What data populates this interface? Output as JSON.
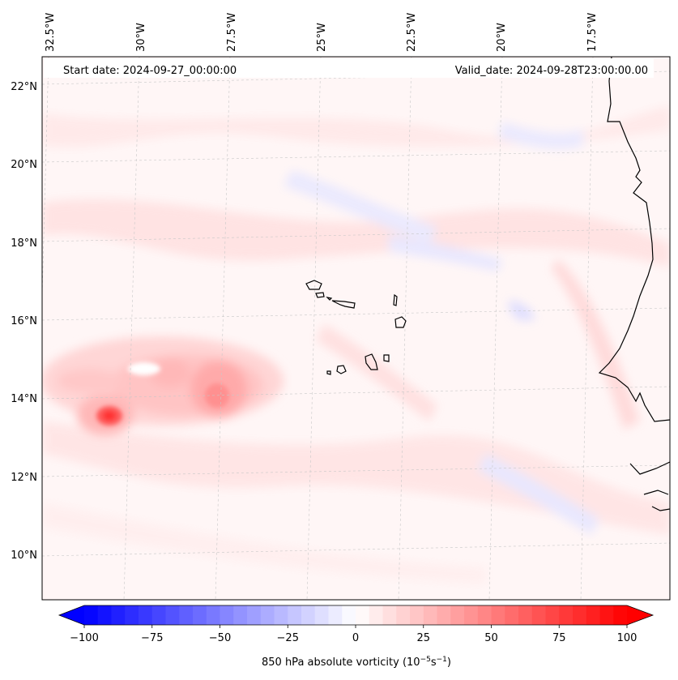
{
  "map": {
    "start_date": "Start date: 2024-09-27_00:00:00",
    "valid_date": "Valid_date: 2024-09-28T23:00:00.00",
    "lon_labels": [
      "32.5°W",
      "30°W",
      "27.5°W",
      "25°W",
      "22.5°W",
      "20°W",
      "17.5°W"
    ],
    "lat_labels": [
      "22°N",
      "20°N",
      "18°N",
      "16°N",
      "14°N",
      "12°N",
      "10°N"
    ]
  },
  "colorbar": {
    "label": "850 hPa absolute vorticity (10",
    "label_exp1": "−5",
    "label_mid": "s",
    "label_exp2": "−1",
    "label_end": ")",
    "ticks": [
      "−100",
      "−75",
      "−50",
      "−25",
      "0",
      "25",
      "50",
      "75",
      "100"
    ],
    "min": -100,
    "max": 100,
    "low_color": "#0000ff",
    "high_color": "#ff0000"
  }
}
